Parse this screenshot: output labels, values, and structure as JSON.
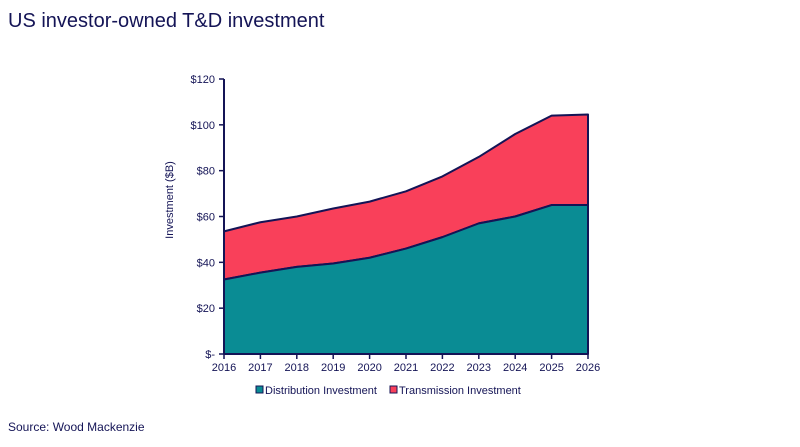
{
  "page": {
    "title": "US investor-owned T&D investment",
    "source": "Source: Wood Mackenzie"
  },
  "colors": {
    "distribution": "#0a8c94",
    "transmission": "#f9405a",
    "outline": "#141456",
    "text": "#141456"
  },
  "chart_data": {
    "type": "area",
    "stacked": true,
    "x": [
      "2016",
      "2017",
      "2018",
      "2019",
      "2020",
      "2021",
      "2022",
      "2023",
      "2024",
      "2025",
      "2026"
    ],
    "series": [
      {
        "name": "Distribution Investment",
        "values": [
          32.5,
          35.5,
          38,
          39.5,
          42,
          46,
          51,
          57,
          60,
          65,
          65
        ]
      },
      {
        "name": "Transmission Investment",
        "values": [
          21,
          22,
          22,
          24,
          24.5,
          25,
          26.5,
          29,
          36,
          39,
          39.5
        ]
      }
    ],
    "ylabel": "Investment ($B)",
    "xlabel": "",
    "ylim": [
      0,
      120
    ],
    "yticks": [
      0,
      20,
      40,
      60,
      80,
      100,
      120
    ],
    "ytick_labels": [
      "$-",
      "$20",
      "$40",
      "$60",
      "$80",
      "$100",
      "$120"
    ],
    "legend": "bottom",
    "grid": false
  }
}
